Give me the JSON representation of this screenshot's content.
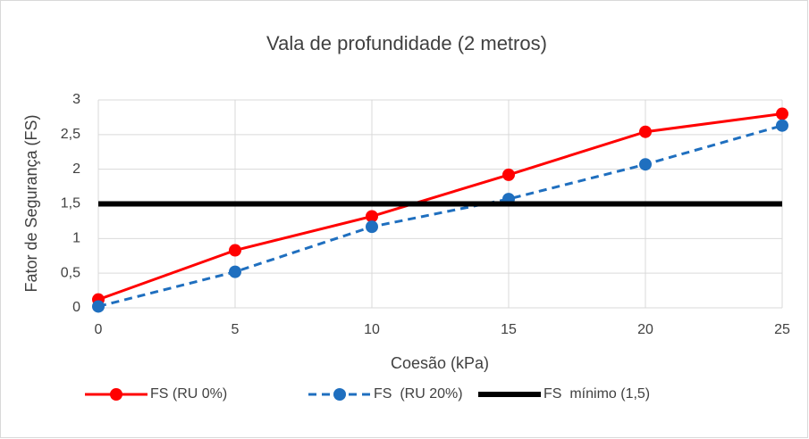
{
  "chart_data": {
    "type": "line",
    "title": "Vala de profundidade (2 metros)",
    "x_label": "Coesão (kPa)",
    "y_label": "Fator de Segurança (FS)",
    "x": [
      0,
      5,
      10,
      15,
      20,
      25
    ],
    "series": [
      {
        "name": "FS (RU 0%)",
        "color": "#ff0000",
        "values": [
          0.12,
          0.83,
          1.32,
          1.92,
          2.54,
          2.8
        ],
        "dashed": false,
        "markers": true
      },
      {
        "name": "FS  (RU 20%)",
        "color": "#1f6fbf",
        "values": [
          0.02,
          0.52,
          1.17,
          1.57,
          2.07,
          2.63
        ],
        "dashed": true,
        "markers": true
      },
      {
        "name": "FS  mínimo (1,5)",
        "color": "#000000",
        "values": [
          1.5,
          1.5,
          1.5,
          1.5,
          1.5,
          1.5
        ],
        "dashed": false,
        "markers": false
      }
    ],
    "xlim": [
      0,
      25
    ],
    "xticks": [
      0,
      5,
      10,
      15,
      20,
      25
    ],
    "ylim": [
      0,
      3
    ],
    "yticks": [
      0,
      {
        "value": 0.5,
        "label": "0,5"
      },
      1,
      {
        "value": 1.5,
        "label": "1,5"
      },
      2,
      {
        "value": 2.5,
        "label": "2,5"
      },
      3
    ],
    "grid": true,
    "legend": "bottom"
  }
}
